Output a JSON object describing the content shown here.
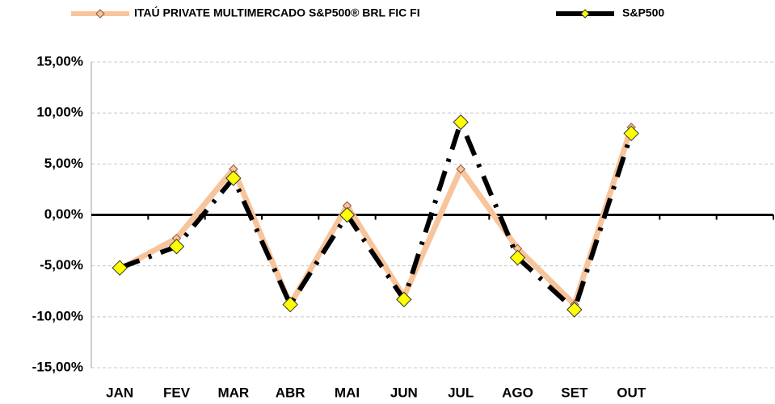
{
  "chart_data": {
    "type": "line",
    "categories": [
      "JAN",
      "FEV",
      "MAR",
      "ABR",
      "MAI",
      "JUN",
      "JUL",
      "AGO",
      "SET",
      "OUT",
      null,
      null
    ],
    "series": [
      {
        "name": "ITAÚ PRIVATE MULTIMERCADO S&P500® BRL FIC FI",
        "color": "#f8c49b",
        "values": [
          -5.3,
          -2.3,
          4.5,
          -8.8,
          0.9,
          -8.0,
          4.5,
          -3.3,
          -8.8,
          8.6,
          null,
          null
        ]
      },
      {
        "name": "S&P500",
        "color": "#000000",
        "values": [
          -5.2,
          -3.1,
          3.6,
          -8.8,
          0.0,
          -8.3,
          9.1,
          -4.2,
          -9.3,
          8.0,
          null,
          null
        ]
      }
    ],
    "ylim": [
      -15,
      15
    ],
    "yticks": [
      {
        "value": -15,
        "label": "-15,00%"
      },
      {
        "value": -10,
        "label": "-10,00%"
      },
      {
        "value": -5,
        "label": "-5,00%"
      },
      {
        "value": 0,
        "label": "0,00%"
      },
      {
        "value": 5,
        "label": "5,00%"
      },
      {
        "value": 10,
        "label": "10,00%"
      },
      {
        "value": 15,
        "label": "15,00%"
      }
    ],
    "grid": true
  }
}
